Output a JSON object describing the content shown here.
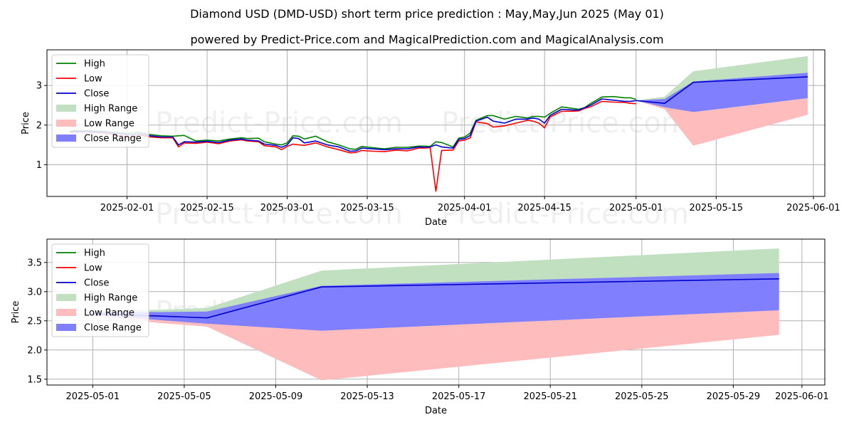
{
  "title": "Diamond USD (DMD-USD) short term price prediction : May,May,Jun 2025 (May 01)",
  "subtitle": "powered by Predict-Price.com and MagicalPrediction.com and MagicalAnalysis.com",
  "watermark": "Predict-Price.com",
  "colors": {
    "high": "#008000",
    "low": "#ff0000",
    "close": "#0000cc",
    "high_range": "#c0e0c0",
    "low_range": "#ffbcbc",
    "close_range": "#8080ff"
  },
  "legend": [
    "High",
    "Low",
    "Close",
    "High Range",
    "Low Range",
    "Close Range"
  ],
  "chart_data": [
    {
      "type": "line",
      "title": "",
      "xlabel": "Date",
      "ylabel": "Price",
      "xlim": [
        "2025-01-18",
        "2025-06-03"
      ],
      "ylim": [
        0.2,
        3.9
      ],
      "grid": true,
      "legend_position": "top-left",
      "x_ticks": [
        "2025-02-01",
        "2025-02-15",
        "2025-03-01",
        "2025-03-15",
        "2025-04-01",
        "2025-04-15",
        "2025-05-01",
        "2025-05-15",
        "2025-06-01"
      ],
      "y_ticks": [
        1,
        2,
        3
      ],
      "history": {
        "dates": [
          "2025-01-22",
          "2025-01-25",
          "2025-01-28",
          "2025-01-31",
          "2025-02-01",
          "2025-02-02",
          "2025-02-03",
          "2025-02-05",
          "2025-02-07",
          "2025-02-09",
          "2025-02-10",
          "2025-02-11",
          "2025-02-13",
          "2025-02-15",
          "2025-02-17",
          "2025-02-19",
          "2025-02-21",
          "2025-02-22",
          "2025-02-24",
          "2025-02-25",
          "2025-02-27",
          "2025-02-28",
          "2025-03-01",
          "2025-03-02",
          "2025-03-03",
          "2025-03-04",
          "2025-03-06",
          "2025-03-08",
          "2025-03-10",
          "2025-03-12",
          "2025-03-13",
          "2025-03-14",
          "2025-03-16",
          "2025-03-18",
          "2025-03-20",
          "2025-03-22",
          "2025-03-24",
          "2025-03-25",
          "2025-03-26",
          "2025-03-27",
          "2025-03-28",
          "2025-03-30",
          "2025-03-31",
          "2025-04-01",
          "2025-04-02",
          "2025-04-03",
          "2025-04-05",
          "2025-04-06",
          "2025-04-08",
          "2025-04-10",
          "2025-04-12",
          "2025-04-13",
          "2025-04-14",
          "2025-04-15",
          "2025-04-16",
          "2025-04-18",
          "2025-04-20",
          "2025-04-21",
          "2025-04-22",
          "2025-04-23",
          "2025-04-25",
          "2025-04-27",
          "2025-04-29",
          "2025-04-30",
          "2025-05-01"
        ],
        "high": [
          1.85,
          1.86,
          1.84,
          1.8,
          1.79,
          1.8,
          1.82,
          1.76,
          1.73,
          1.72,
          1.73,
          1.74,
          1.6,
          1.62,
          1.6,
          1.65,
          1.68,
          1.66,
          1.67,
          1.58,
          1.52,
          1.5,
          1.55,
          1.73,
          1.72,
          1.65,
          1.72,
          1.58,
          1.5,
          1.4,
          1.39,
          1.46,
          1.43,
          1.4,
          1.44,
          1.44,
          1.47,
          1.47,
          1.46,
          1.58,
          1.56,
          1.45,
          1.67,
          1.7,
          1.8,
          2.12,
          2.24,
          2.24,
          2.15,
          2.22,
          2.18,
          2.22,
          2.22,
          2.2,
          2.3,
          2.46,
          2.42,
          2.4,
          2.44,
          2.54,
          2.71,
          2.72,
          2.69,
          2.69,
          2.65
        ],
        "low": [
          1.82,
          1.83,
          1.8,
          1.73,
          1.7,
          1.67,
          1.75,
          1.7,
          1.68,
          1.68,
          1.45,
          1.55,
          1.54,
          1.57,
          1.53,
          1.6,
          1.63,
          1.6,
          1.58,
          1.48,
          1.45,
          1.38,
          1.46,
          1.52,
          1.5,
          1.49,
          1.55,
          1.45,
          1.38,
          1.3,
          1.31,
          1.36,
          1.34,
          1.33,
          1.37,
          1.35,
          1.42,
          1.42,
          1.43,
          0.33,
          1.36,
          1.37,
          1.6,
          1.62,
          1.68,
          2.08,
          2.04,
          1.95,
          1.98,
          2.05,
          2.12,
          2.1,
          2.05,
          1.93,
          2.21,
          2.35,
          2.35,
          2.36,
          2.42,
          2.46,
          2.6,
          2.58,
          2.57,
          2.55,
          2.54
        ],
        "close": [
          1.83,
          1.84,
          1.82,
          1.78,
          1.76,
          1.75,
          1.78,
          1.73,
          1.7,
          1.7,
          1.5,
          1.58,
          1.57,
          1.59,
          1.56,
          1.62,
          1.65,
          1.62,
          1.6,
          1.52,
          1.49,
          1.44,
          1.5,
          1.68,
          1.66,
          1.55,
          1.6,
          1.5,
          1.45,
          1.34,
          1.35,
          1.42,
          1.4,
          1.38,
          1.4,
          1.4,
          1.45,
          1.44,
          1.45,
          1.5,
          1.45,
          1.42,
          1.64,
          1.66,
          1.74,
          2.1,
          2.2,
          2.1,
          2.05,
          2.15,
          2.15,
          2.18,
          2.15,
          2.05,
          2.25,
          2.4,
          2.38,
          2.38,
          2.44,
          2.5,
          2.66,
          2.63,
          2.6,
          2.6,
          2.62
        ]
      },
      "forecast": {
        "dates": [
          "2025-05-01",
          "2025-05-06",
          "2025-05-11",
          "2025-05-31"
        ],
        "close": [
          2.62,
          2.55,
          3.08,
          3.22
        ],
        "high_range": [
          2.62,
          2.72,
          3.36,
          3.74
        ],
        "low_range": [
          2.62,
          2.4,
          1.48,
          2.26
        ],
        "close_range_upper": [
          2.62,
          2.66,
          3.1,
          3.32
        ],
        "close_range_lower": [
          2.62,
          2.45,
          2.33,
          2.68
        ]
      }
    },
    {
      "type": "line",
      "title": "",
      "xlabel": "Date",
      "ylabel": "Price",
      "xlim": [
        "2025-04-29",
        "2025-06-02"
      ],
      "ylim": [
        1.4,
        3.9
      ],
      "grid": true,
      "legend_position": "top-left",
      "x_ticks": [
        "2025-05-01",
        "2025-05-05",
        "2025-05-09",
        "2025-05-13",
        "2025-05-17",
        "2025-05-21",
        "2025-05-25",
        "2025-05-29",
        "2025-06-01"
      ],
      "y_ticks": [
        1.5,
        2.0,
        2.5,
        3.0,
        3.5
      ],
      "y_tick_labels": [
        "1.5",
        "2.0",
        "2.5",
        "3.0",
        "3.5"
      ],
      "forecast": {
        "dates": [
          "2025-05-01",
          "2025-05-04",
          "2025-05-06",
          "2025-05-11",
          "2025-05-31"
        ],
        "close": [
          2.62,
          2.58,
          2.55,
          3.08,
          3.22
        ],
        "high_range": [
          2.68,
          2.69,
          2.72,
          3.36,
          3.74
        ],
        "low_range": [
          2.58,
          2.46,
          2.4,
          1.48,
          2.26
        ],
        "close_range_upper": [
          2.66,
          2.65,
          2.66,
          3.1,
          3.32
        ],
        "close_range_lower": [
          2.6,
          2.51,
          2.45,
          2.33,
          2.68
        ]
      }
    }
  ]
}
